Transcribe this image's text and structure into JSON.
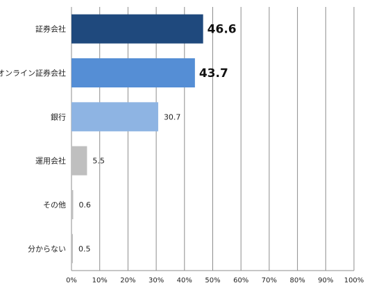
{
  "chart_data": {
    "type": "bar",
    "orientation": "horizontal",
    "categories": [
      "証券会社",
      "オンライン証券会社",
      "銀行",
      "運用会社",
      "その他",
      "分からない"
    ],
    "values": [
      46.6,
      43.7,
      30.7,
      5.5,
      0.6,
      0.5
    ],
    "value_labels": [
      "46.6",
      "43.7",
      "30.7",
      "5.5",
      "0.6",
      "0.5"
    ],
    "colors": [
      "#1f497d",
      "#558ed5",
      "#8eb4e3",
      "#bfbfbf",
      "#bfbfbf",
      "#bfbfbf"
    ],
    "xlim": [
      0,
      100
    ],
    "xticks": [
      "0%",
      "10%",
      "20%",
      "30%",
      "40%",
      "50%",
      "60%",
      "70%",
      "80%",
      "90%",
      "100%"
    ],
    "grid": "vertical",
    "legend": "none"
  }
}
